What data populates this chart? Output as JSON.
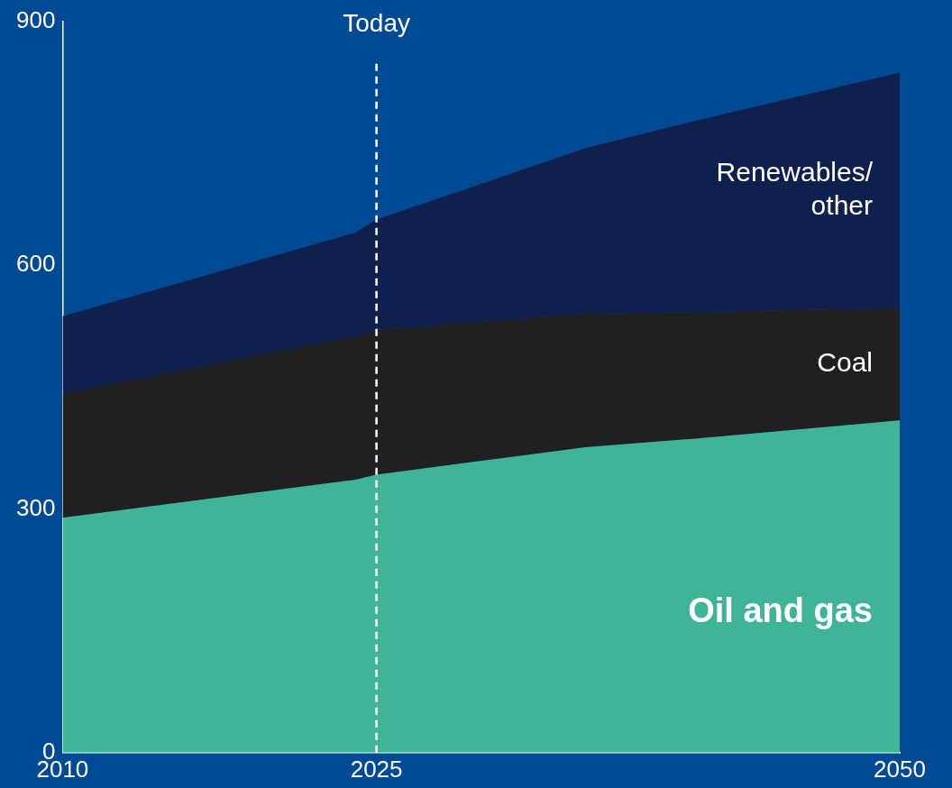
{
  "chart_data": {
    "type": "area",
    "stacked": true,
    "x": [
      2010,
      2024,
      2025,
      2035,
      2040,
      2050
    ],
    "xlim": [
      2010,
      2050
    ],
    "xticks": [
      2010,
      2025,
      2050
    ],
    "ylim": [
      0,
      900
    ],
    "yticks": [
      0,
      300,
      600,
      900
    ],
    "grid": false,
    "legend": false,
    "series": [
      {
        "name": "Oil and gas",
        "color": "#3fb497",
        "values": [
          289,
          336,
          342,
          376,
          386,
          409
        ]
      },
      {
        "name": "Coal",
        "color": "#202020",
        "values": [
          153,
          176,
          178,
          164,
          156,
          138
        ]
      },
      {
        "name": "Renewables/\nother",
        "color": "#10204d",
        "values": [
          95,
          128,
          136,
          204,
          234,
          290
        ]
      }
    ],
    "ref_lines": [
      {
        "axis": "x",
        "value": 2025,
        "label": "Today",
        "color": "#ffffff",
        "line_style": "dashed"
      }
    ]
  }
}
